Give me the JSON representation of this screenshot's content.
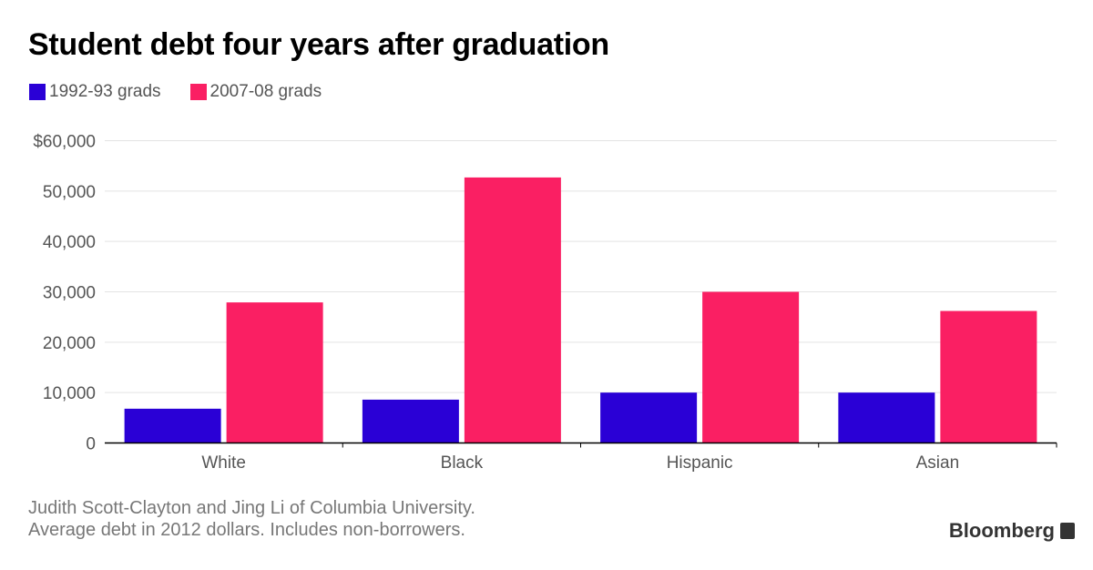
{
  "chart_data": {
    "type": "bar",
    "title": "Student debt four years after graduation",
    "categories": [
      "White",
      "Black",
      "Hispanic",
      "Asian"
    ],
    "series": [
      {
        "name": "1992-93 grads",
        "color": "#2a00d6",
        "values": [
          6800,
          8600,
          10000,
          10000
        ]
      },
      {
        "name": "2007-08 grads",
        "color": "#fa1f63",
        "values": [
          27900,
          52700,
          30000,
          26200
        ]
      }
    ],
    "yticks": [
      0,
      10000,
      20000,
      30000,
      40000,
      50000,
      60000
    ],
    "ytick_labels": [
      "0",
      "10,000",
      "20,000",
      "30,000",
      "40,000",
      "50,000",
      "$60,000"
    ],
    "ylim": [
      0,
      60000
    ],
    "xlabel": "",
    "ylabel": "",
    "grid": true,
    "legend_placement": "top-left"
  },
  "source": {
    "line1": "Judith Scott-Clayton and Jing Li of Columbia University.",
    "line2": "Average debt in 2012 dollars. Includes non-borrowers."
  },
  "brand": "Bloomberg"
}
